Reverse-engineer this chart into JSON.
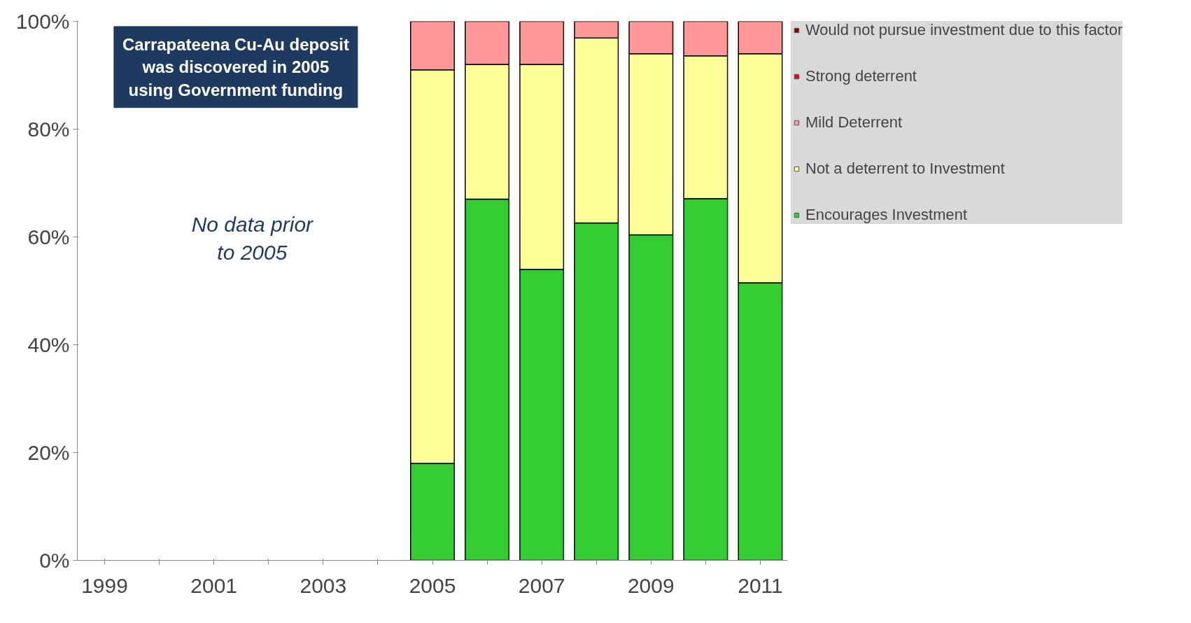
{
  "chart_data": {
    "type": "bar",
    "stacked": true,
    "categories": [
      "1999",
      null,
      "2001",
      null,
      "2003",
      null,
      "2005",
      null,
      "2007",
      null,
      "2009",
      null,
      "2011"
    ],
    "series": [
      {
        "name": "Encourages Investment",
        "color": "#33cc33",
        "values": [
          null,
          null,
          null,
          null,
          null,
          null,
          18,
          67,
          54,
          62.6,
          60.4,
          67.1,
          51.5
        ]
      },
      {
        "name": "Not a deterrent to Investment",
        "color": "#ffff99",
        "values": [
          null,
          null,
          null,
          null,
          null,
          null,
          73,
          25,
          38,
          34.3,
          33.6,
          26.5,
          42.5
        ]
      },
      {
        "name": "Mild Deterrent",
        "color": "#ff9999",
        "values": [
          null,
          null,
          null,
          null,
          null,
          null,
          9,
          8,
          8,
          3.1,
          6,
          6.4,
          6
        ]
      },
      {
        "name": "Strong deterrent",
        "color": "#ff0000",
        "values": [
          null,
          null,
          null,
          null,
          null,
          null,
          null,
          null,
          null,
          null,
          null,
          null,
          null
        ]
      },
      {
        "name": "Would not pursue investment due to this factor",
        "color": "#800000",
        "values": [
          null,
          null,
          null,
          null,
          null,
          null,
          null,
          null,
          null,
          null,
          null,
          null,
          null
        ]
      }
    ],
    "ylim": [
      0,
      100
    ],
    "yticks": [
      {
        "value": 0,
        "label": "0%"
      },
      {
        "value": 20,
        "label": "20%"
      },
      {
        "value": 40,
        "label": "40%"
      },
      {
        "value": 60,
        "label": "60%"
      },
      {
        "value": 80,
        "label": "80%"
      },
      {
        "value": 100,
        "label": "100%"
      }
    ],
    "grid": false,
    "legend": "right",
    "annotations": [
      "Carrapateena Cu-Au deposit was discovered in 2005 using Government funding",
      "No data prior to 2005"
    ]
  }
}
